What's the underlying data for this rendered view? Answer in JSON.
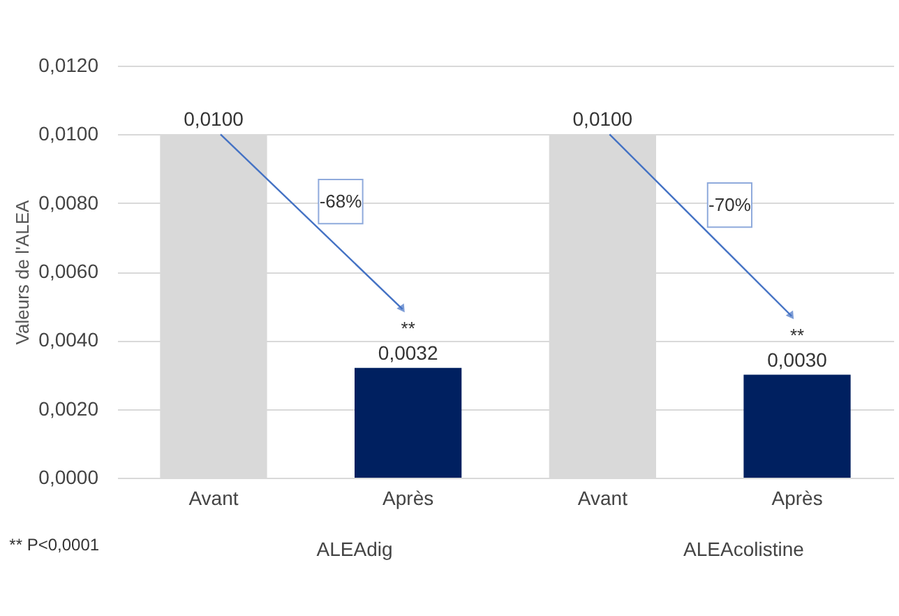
{
  "chart_data": {
    "type": "bar",
    "ylabel": "Valeurs de l'ALEA",
    "categories": [
      "Avant",
      "Après",
      "Avant",
      "Après"
    ],
    "values": [
      0.01,
      0.0032,
      0.01,
      0.003
    ],
    "colors": [
      "#d9d9d9",
      "#002060",
      "#d9d9d9",
      "#002060"
    ],
    "value_labels": [
      "0,0100",
      "0,0032",
      "0,0100",
      "0,0030"
    ],
    "ylim": [
      0,
      0.012
    ],
    "yticks": [
      {
        "value": 0,
        "label": "0,0000"
      },
      {
        "value": 0.002,
        "label": "0,0020"
      },
      {
        "value": 0.004,
        "label": "0,0040"
      },
      {
        "value": 0.006,
        "label": "0,0060"
      },
      {
        "value": 0.008,
        "label": "0,0080"
      },
      {
        "value": 0.01,
        "label": "0,0100"
      },
      {
        "value": 0.012,
        "label": "0,0120"
      }
    ],
    "grid": "y",
    "annotations": [
      "-68%",
      "-70%",
      "**",
      "**",
      "ALEAdig",
      "ALEAcolistine",
      "** P<0,0001"
    ]
  }
}
